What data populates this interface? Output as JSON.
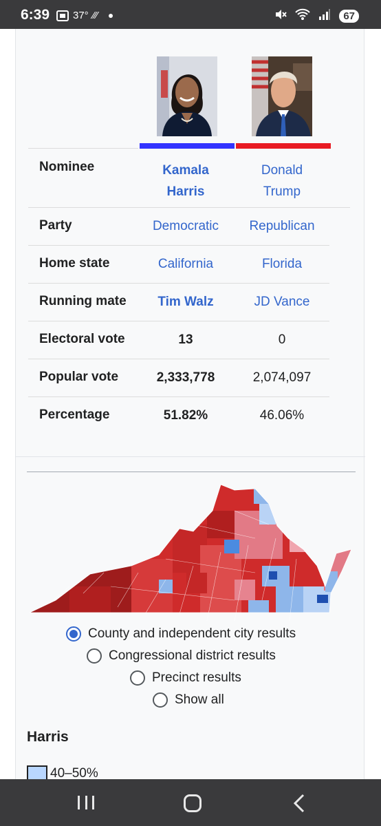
{
  "status_bar": {
    "time": "6:39",
    "temp": "37°",
    "battery": "67"
  },
  "infobox": {
    "candidates": [
      {
        "name_line1": "Kamala",
        "name_line2": "Harris",
        "party": "Democratic",
        "home_state": "California",
        "running_mate": "Tim Walz",
        "electoral_vote": "13",
        "popular_vote": "2,333,778",
        "percentage": "51.82%",
        "color": "#3333ff"
      },
      {
        "name_line1": "Donald",
        "name_line2": "Trump",
        "party": "Republican",
        "home_state": "Florida",
        "running_mate": "JD Vance",
        "electoral_vote": "0",
        "popular_vote": "2,074,097",
        "percentage": "46.06%",
        "color": "#e81b23"
      }
    ],
    "labels": {
      "nominee": "Nominee",
      "party": "Party",
      "home_state": "Home state",
      "running_mate": "Running mate",
      "electoral_vote": "Electoral vote",
      "popular_vote": "Popular vote",
      "percentage": "Percentage"
    }
  },
  "map_options": {
    "county": "County and independent city results",
    "congressional": "Congressional district results",
    "precinct": "Precinct results",
    "show_all": "Show all",
    "selected": "county"
  },
  "legend": {
    "title": "Harris",
    "range": "40–50%"
  }
}
